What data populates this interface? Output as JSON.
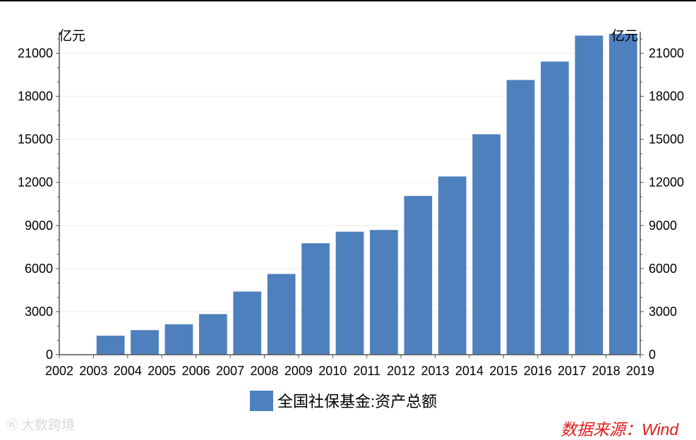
{
  "chart_data": {
    "type": "bar",
    "categories": [
      "2003",
      "2004",
      "2005",
      "2006",
      "2007",
      "2008",
      "2009",
      "2010",
      "2011",
      "2012",
      "2013",
      "2014",
      "2015",
      "2016",
      "2017",
      "2018"
    ],
    "x_ticks": [
      "2002",
      "2003",
      "2004",
      "2005",
      "2006",
      "2007",
      "2008",
      "2009",
      "2010",
      "2011",
      "2012",
      "2013",
      "2014",
      "2015",
      "2016",
      "2017",
      "2018",
      "2019"
    ],
    "series": [
      {
        "name": "全国社保基金:资产总额",
        "color": "#4e80bd",
        "values": [
          1325,
          1711,
          2118,
          2828,
          4397,
          5624,
          7766,
          8567,
          8688,
          11060,
          12416,
          15356,
          19138,
          20423,
          22231,
          22354
        ]
      }
    ],
    "y_ticks": [
      0,
      3000,
      6000,
      9000,
      12000,
      15000,
      18000,
      21000
    ],
    "ylim": [
      0,
      22500
    ],
    "y_unit_left": "亿元",
    "y_unit_right": "亿元",
    "grid": true,
    "legend_position": "bottom"
  },
  "source": "数据来源：Wind",
  "watermark": "大数跨境",
  "watermark_icon": "logo-icon"
}
